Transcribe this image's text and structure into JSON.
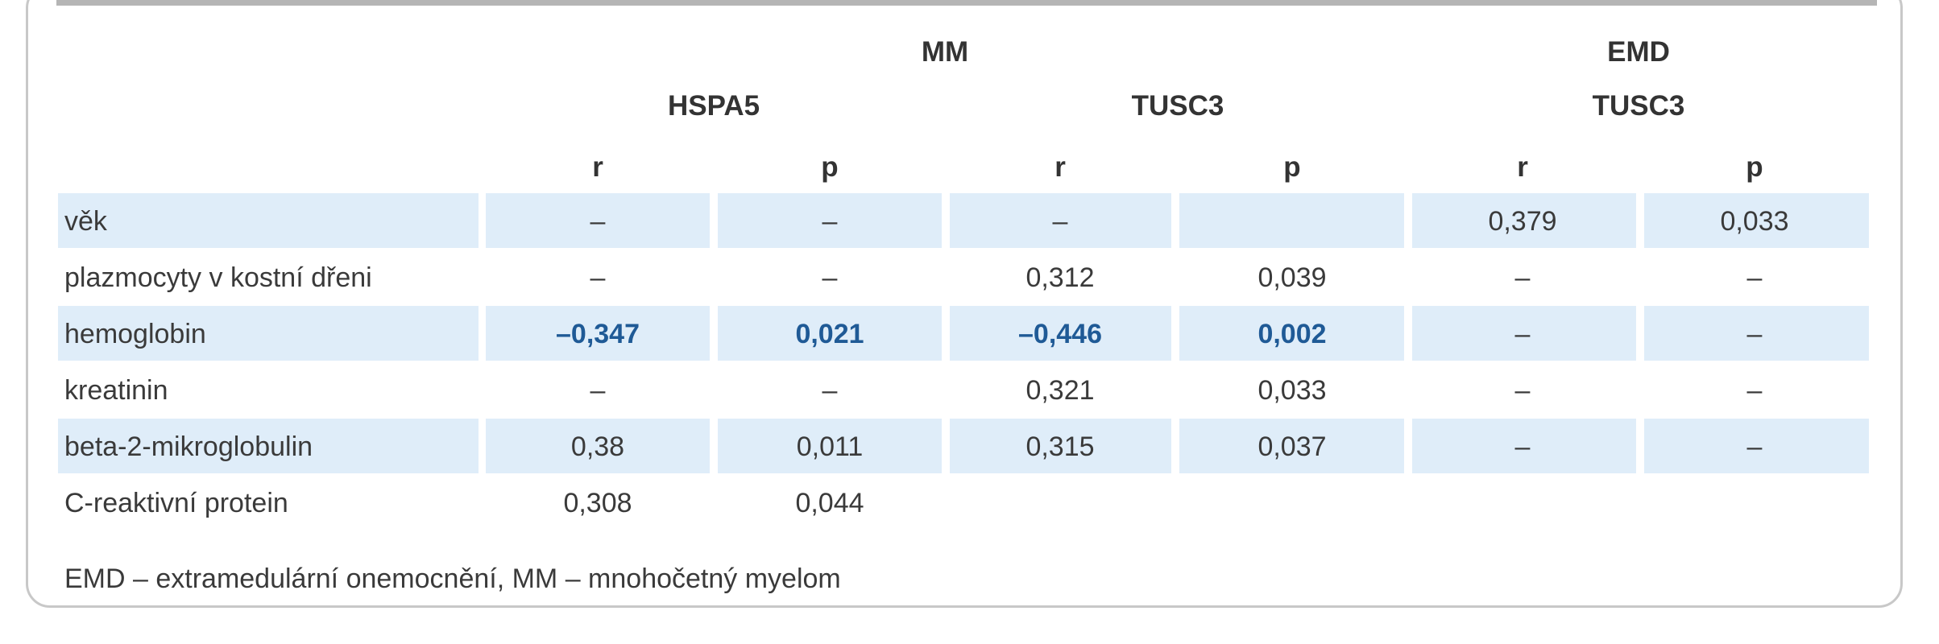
{
  "header": {
    "group_mm": "MM",
    "group_emd": "EMD",
    "gene_hspa5": "HSPA5",
    "gene_tusc3_mm": "TUSC3",
    "gene_tusc3_emd": "TUSC3",
    "col_r1": "r",
    "col_p1": "p",
    "col_r2": "r",
    "col_p2": "p",
    "col_r3": "r",
    "col_p3": "p"
  },
  "rows": [
    {
      "label": "věk",
      "cells": [
        "–",
        "–",
        "–",
        "",
        "0,379",
        "0,033"
      ]
    },
    {
      "label": "plazmocyty v kostní dřeni",
      "cells": [
        "–",
        "–",
        "0,312",
        "0,039",
        "–",
        "–"
      ]
    },
    {
      "label": "hemoglobin",
      "cells": [
        "–0,347",
        "0,021",
        "–0,446",
        "0,002",
        "–",
        "–"
      ]
    },
    {
      "label": "kreatinin",
      "cells": [
        "–",
        "–",
        "0,321",
        "0,033",
        "–",
        "–"
      ]
    },
    {
      "label": "beta-2-mikroglobulin",
      "cells": [
        "0,38",
        "0,011",
        "0,315",
        "0,037",
        "–",
        "–"
      ]
    },
    {
      "label": "C-reaktivní protein",
      "cells": [
        "0,308",
        "0,044",
        "",
        "",
        "",
        ""
      ]
    }
  ],
  "footnote": "EMD – extramedulární onemocnění, MM – mnohočetný myelom",
  "colors": {
    "stripe": "#dfedf9",
    "highlight_text": "#1f5a96",
    "border": "#c8c8c8"
  }
}
